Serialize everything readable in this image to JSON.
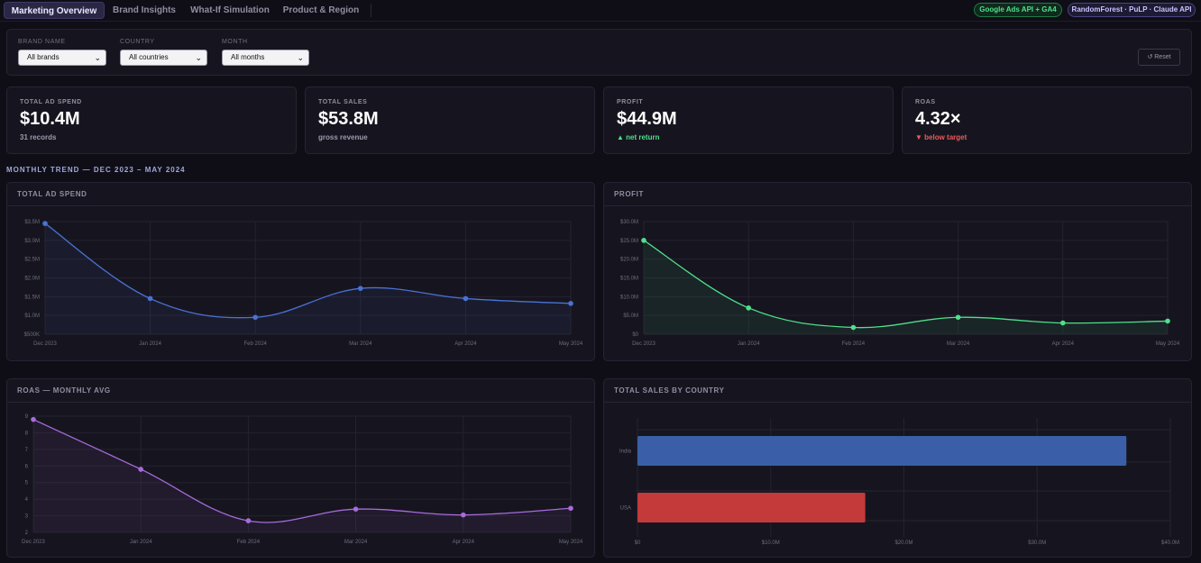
{
  "nav": {
    "tabs": [
      {
        "label": "Marketing Overview",
        "active": true
      },
      {
        "label": "Brand Insights",
        "active": false
      },
      {
        "label": "What-If Simulation",
        "active": false
      },
      {
        "label": "Product & Region",
        "active": false
      }
    ],
    "badges": {
      "api": "Google Ads API + GA4",
      "model": "RandomForest · PuLP · Claude API"
    }
  },
  "filters": {
    "brand": {
      "label": "Brand name",
      "value": "All brands"
    },
    "country": {
      "label": "Country",
      "value": "All countries"
    },
    "month": {
      "label": "Month",
      "value": "All months"
    },
    "reset_label": "↺ Reset"
  },
  "kpis": [
    {
      "label": "Total ad spend",
      "value": "$10.4M",
      "sub": "31 records",
      "trend": "neutral"
    },
    {
      "label": "Total sales",
      "value": "$53.8M",
      "sub": "gross revenue",
      "trend": "neutral"
    },
    {
      "label": "Profit",
      "value": "$44.9M",
      "sub": "▲ net return",
      "trend": "up"
    },
    {
      "label": "ROAS",
      "value": "4.32×",
      "sub": "▼ below target",
      "trend": "down"
    }
  ],
  "section_title": "Monthly trend — Dec 2023 – May 2024",
  "colors": {
    "spend": "#4a72d6",
    "profit": "#4ee08a",
    "roas": "#a86bdc",
    "india": "#3a5fa8",
    "usa": "#c43a3a"
  },
  "chart_data": [
    {
      "type": "line",
      "title": "Total ad spend",
      "x": [
        "Dec 2023",
        "Jan 2024",
        "Feb 2024",
        "Mar 2024",
        "Apr 2024",
        "May 2024"
      ],
      "series": [
        {
          "values": [
            3.45,
            1.45,
            0.95,
            1.72,
            1.45,
            1.32
          ]
        }
      ],
      "y_ticks": [
        "$500K",
        "$1.0M",
        "$1.5M",
        "$2.0M",
        "$2.5M",
        "$3.0M",
        "$3.5M"
      ],
      "y_unit": "$M",
      "ylim": [
        0.5,
        3.5
      ],
      "grid": true
    },
    {
      "type": "line",
      "title": "Profit",
      "x": [
        "Dec 2023",
        "Jan 2024",
        "Feb 2024",
        "Mar 2024",
        "Apr 2024",
        "May 2024"
      ],
      "series": [
        {
          "values": [
            25.0,
            7.0,
            1.8,
            4.5,
            3.0,
            3.5
          ]
        }
      ],
      "y_ticks": [
        "$0",
        "$5.0M",
        "$10.0M",
        "$15.0M",
        "$20.0M",
        "$25.0M",
        "$30.0M"
      ],
      "y_unit": "$M",
      "ylim": [
        0,
        30
      ],
      "grid": true
    },
    {
      "type": "line",
      "title": "ROAS — monthly avg",
      "x": [
        "Dec 2023",
        "Jan 2024",
        "Feb 2024",
        "Mar 2024",
        "Apr 2024",
        "May 2024"
      ],
      "series": [
        {
          "values": [
            8.8,
            5.8,
            2.7,
            3.4,
            3.05,
            3.45
          ]
        }
      ],
      "y_ticks": [
        "2",
        "3",
        "4",
        "5",
        "6",
        "7",
        "8",
        "9"
      ],
      "ylim": [
        2,
        9
      ],
      "grid": true
    },
    {
      "type": "bar",
      "orientation": "horizontal",
      "title": "Total sales by country",
      "categories": [
        "India",
        "USA"
      ],
      "values": [
        36.7,
        17.1
      ],
      "x_ticks": [
        "$0",
        "$10.0M",
        "$20.0M",
        "$30.0M",
        "$40.0M"
      ],
      "x_unit": "$M",
      "xlim": [
        0,
        40
      ],
      "grid": true
    }
  ]
}
